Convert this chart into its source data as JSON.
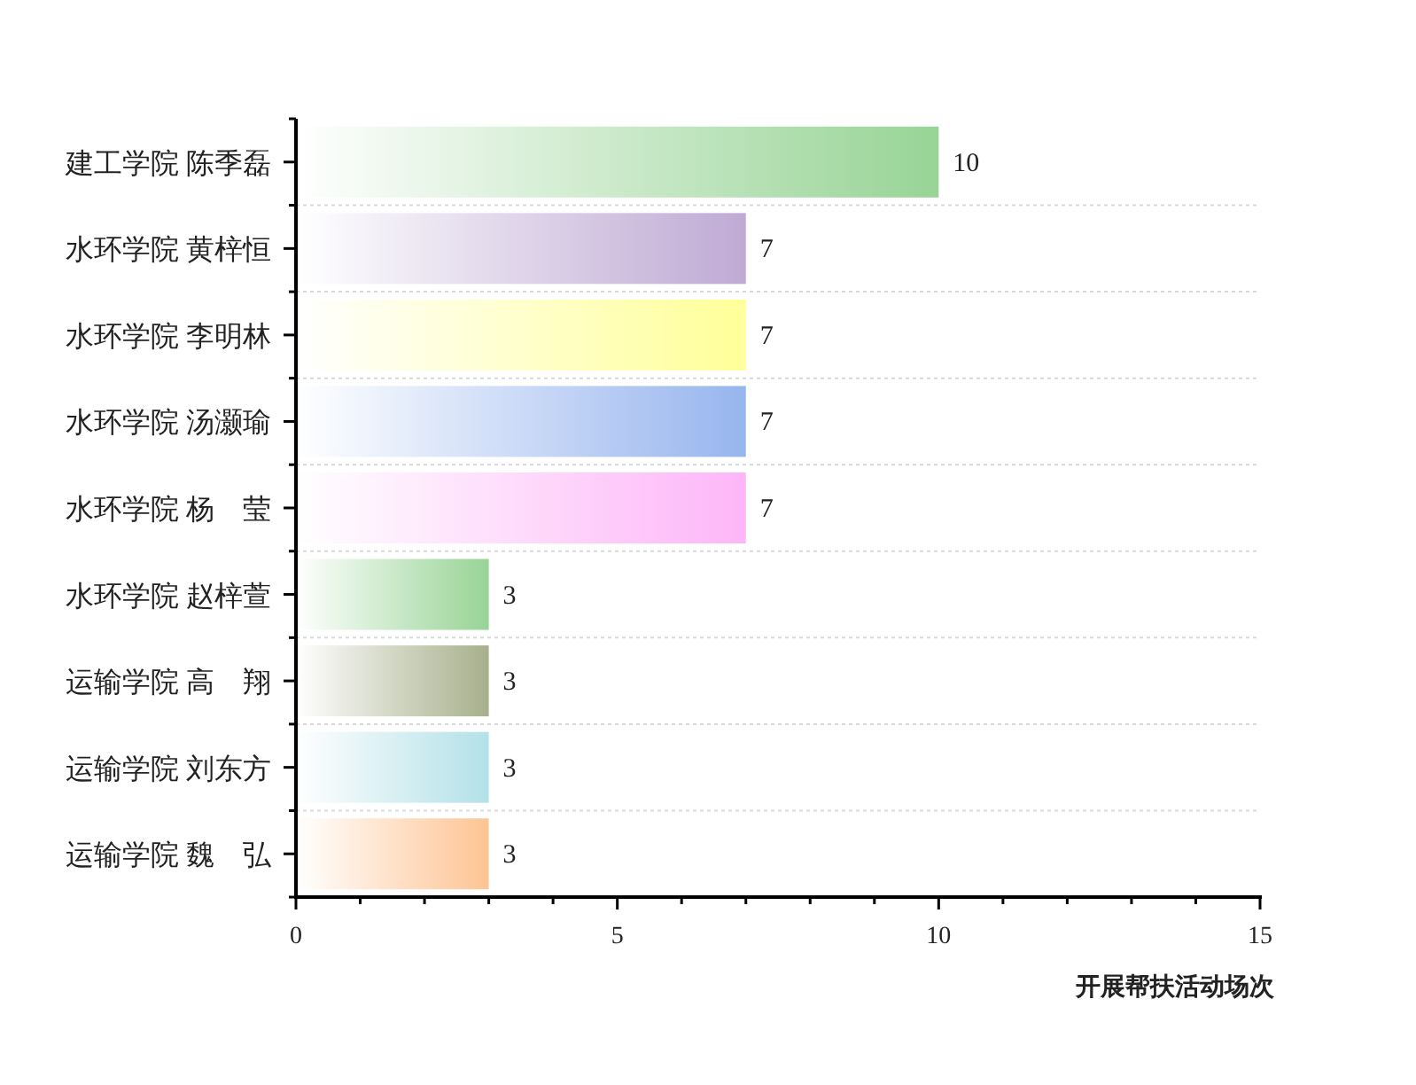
{
  "chart_data": {
    "type": "bar",
    "orientation": "horizontal",
    "xlabel": "开展帮扶活动场次",
    "categories": [
      "建工学院  陈季磊",
      "水环学院  黄梓恒",
      "水环学院  李明林",
      "水环学院  汤灏瑜",
      "水环学院  杨　莹",
      "水环学院  赵梓萱",
      "运输学院  高　翔",
      "运输学院  刘东方",
      "运输学院  魏　弘"
    ],
    "values": [
      10,
      7,
      7,
      7,
      7,
      3,
      3,
      3,
      3
    ],
    "colors": [
      "#98d496",
      "#bfaad4",
      "#ffff99",
      "#97b5ee",
      "#fdb6f8",
      "#98d496",
      "#a7b08c",
      "#b3e1e8",
      "#fdc494"
    ],
    "xlim": [
      0,
      15
    ],
    "xticks": [
      0,
      {
        "value": 1,
        "label": null
      },
      {
        "value": 2,
        "label": null
      },
      {
        "value": 3,
        "label": null
      },
      {
        "value": 4,
        "label": null
      },
      5,
      {
        "value": 6,
        "label": null
      },
      {
        "value": 7,
        "label": null
      },
      {
        "value": 8,
        "label": null
      },
      {
        "value": 9,
        "label": null
      },
      10,
      {
        "value": 11,
        "label": null
      },
      {
        "value": 12,
        "label": null
      },
      {
        "value": 13,
        "label": null
      },
      {
        "value": 14,
        "label": null
      },
      15
    ],
    "grid": "y",
    "data_labels": true
  }
}
